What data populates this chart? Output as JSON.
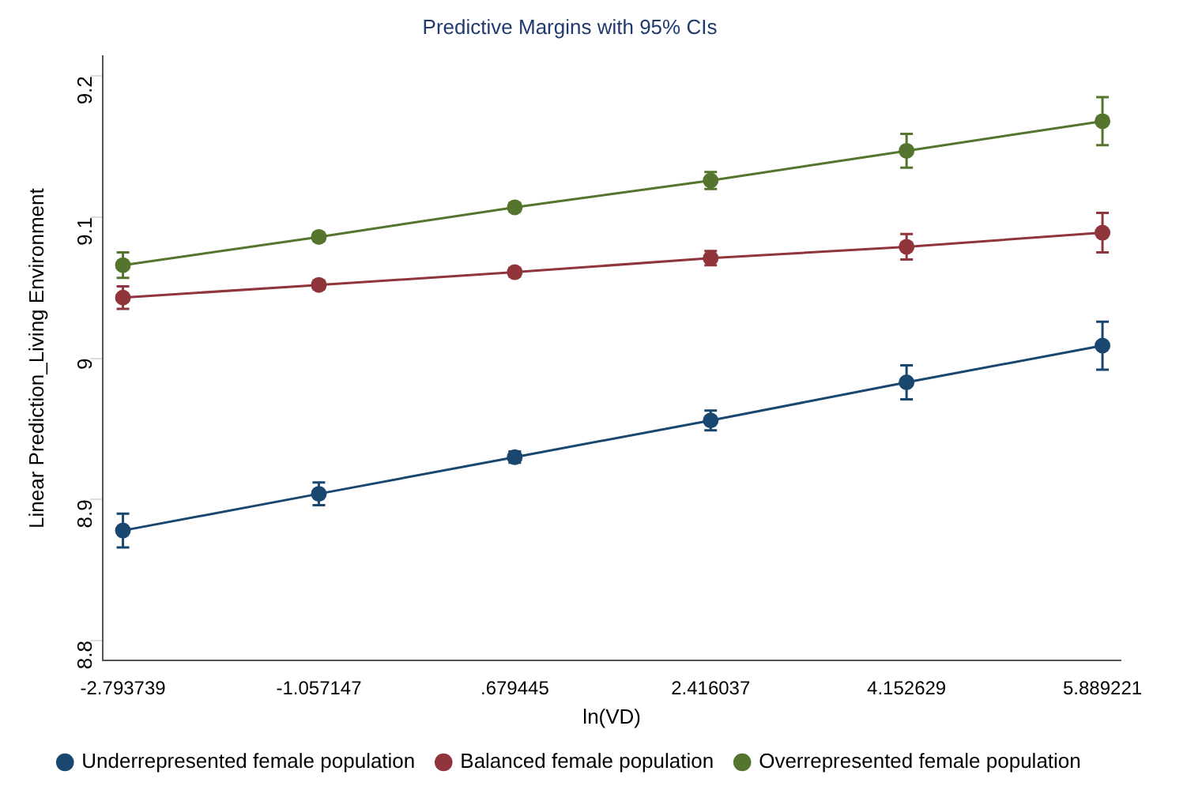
{
  "chart_data": {
    "type": "line",
    "title": "Predictive Margins with 95% CIs",
    "xlabel": "ln(VD)",
    "ylabel": "Linear Prediction_Living Environment",
    "x": [
      -2.793739,
      -1.057147,
      0.679445,
      2.416037,
      4.152629,
      5.889221
    ],
    "series": [
      {
        "name": "Underrepresented female population",
        "color": "#1a476f",
        "values": [
          8.878,
          8.904,
          8.93,
          8.956,
          8.983,
          9.009
        ],
        "errors": [
          0.012,
          0.008,
          0.004,
          0.007,
          0.012,
          0.017
        ]
      },
      {
        "name": "Balanced female population",
        "color": "#90353b",
        "values": [
          9.043,
          9.052,
          9.061,
          9.071,
          9.079,
          9.089
        ],
        "errors": [
          0.008,
          0.003,
          0.003,
          0.005,
          0.009,
          0.014
        ]
      },
      {
        "name": "Overrepresented female population",
        "color": "#55752f",
        "values": [
          9.066,
          9.086,
          9.107,
          9.126,
          9.147,
          9.168
        ],
        "errors": [
          0.009,
          0.003,
          0.003,
          0.006,
          0.012,
          0.017
        ]
      }
    ],
    "xlim": [
      -2.97,
      6.05
    ],
    "xticks": [
      -2.793739,
      -1.057147,
      {
        "value": 0.679445,
        "label": ".679445"
      },
      2.416037,
      4.152629,
      5.889221
    ],
    "ylim": [
      8.786,
      9.214
    ],
    "yticks": [
      8.8,
      8.9,
      9,
      9.1,
      9.2
    ],
    "grid": false,
    "legend": "bottom",
    "marker": "circle",
    "line_style": "solid"
  }
}
